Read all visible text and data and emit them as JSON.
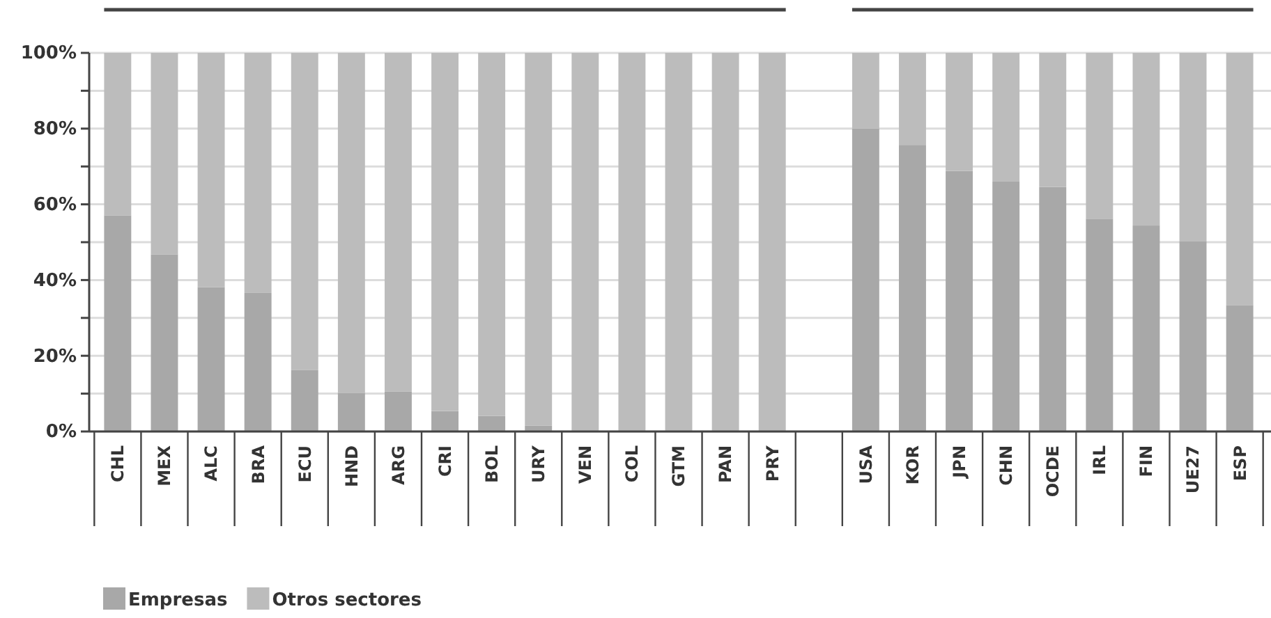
{
  "chart_data": {
    "type": "bar",
    "stacked": true,
    "categories": [
      "CHL",
      "MEX",
      "ALC",
      "BRA",
      "ECU",
      "HND",
      "ARG",
      "CRI",
      "BOL",
      "URY",
      "VEN",
      "COL",
      "GTM",
      "PAN",
      "PRY",
      null,
      "USA",
      "KOR",
      "JPN",
      "CHN",
      "OCDE",
      "IRL",
      "FIN",
      "UE27",
      "ESP"
    ],
    "series": [
      {
        "name": "Empresas",
        "color": "#a8a8a8",
        "values": [
          57.1,
          46.8,
          38.1,
          36.6,
          16.2,
          10.2,
          10.5,
          5.4,
          4.1,
          1.5,
          0,
          0,
          0,
          0,
          0,
          null,
          80,
          75.7,
          68.8,
          66,
          64.6,
          56.2,
          54.4,
          50.2,
          33.4
        ]
      },
      {
        "name": "Otros sectores",
        "color": "#bcbcbc",
        "values": [
          42.9,
          53.2,
          61.9,
          63.4,
          83.8,
          89.8,
          89.5,
          94.6,
          95.9,
          98.5,
          100,
          100,
          100,
          100,
          100,
          null,
          20,
          24.3,
          31.2,
          34,
          35.4,
          43.8,
          45.6,
          49.8,
          66.6
        ]
      }
    ],
    "ylim": [
      0,
      100
    ],
    "yticks": [
      {
        "value": 0,
        "label": "0%"
      },
      {
        "value": 10,
        "label": null
      },
      {
        "value": 20,
        "label": "20%"
      },
      {
        "value": 30,
        "label": null
      },
      {
        "value": 40,
        "label": "40%"
      },
      {
        "value": 50,
        "label": null
      },
      {
        "value": 60,
        "label": "60%"
      },
      {
        "value": 70,
        "label": null
      },
      {
        "value": 80,
        "label": "80%"
      },
      {
        "value": 90,
        "label": null
      },
      {
        "value": 100,
        "label": "100%"
      }
    ],
    "grid": "y",
    "legend": "bottom left"
  }
}
